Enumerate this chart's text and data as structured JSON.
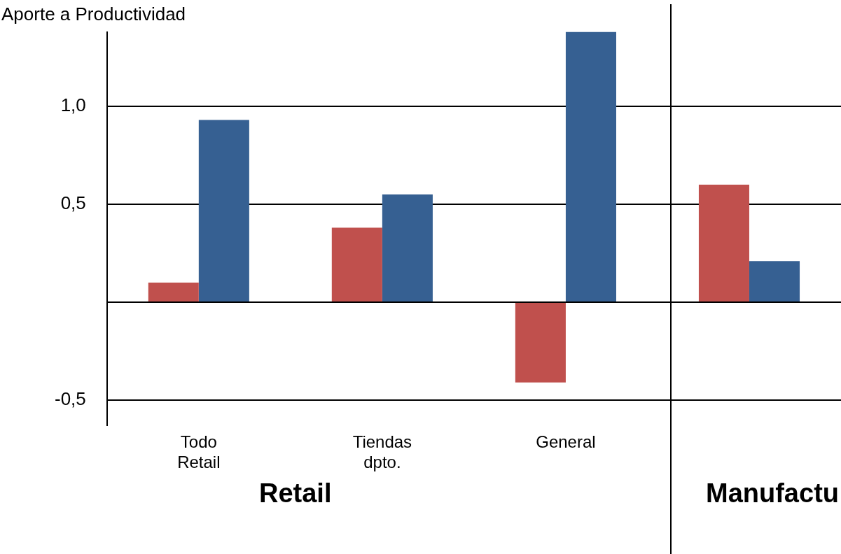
{
  "chart_data": {
    "type": "bar",
    "ylabel": "Aporte a Productividad",
    "categories": [
      "Todo Retail",
      "Tiendas dpto.",
      "General",
      null
    ],
    "series": [
      {
        "color": "#c0504d",
        "values": [
          0.1,
          0.38,
          -0.41,
          0.6
        ]
      },
      {
        "color": "#366092",
        "values": [
          0.93,
          0.55,
          1.38,
          0.21
        ]
      }
    ],
    "ylim": [
      -0.63,
      1.38
    ],
    "yticks": [
      {
        "value": -0.5,
        "label": "-0,5"
      },
      {
        "value": 0,
        "label": null
      },
      {
        "value": 0.5,
        "label": "0,5"
      },
      {
        "value": 1,
        "label": "1,0"
      }
    ],
    "grid": "y",
    "legend": false,
    "annotations": [
      "Retail",
      "Manufactu"
    ]
  }
}
